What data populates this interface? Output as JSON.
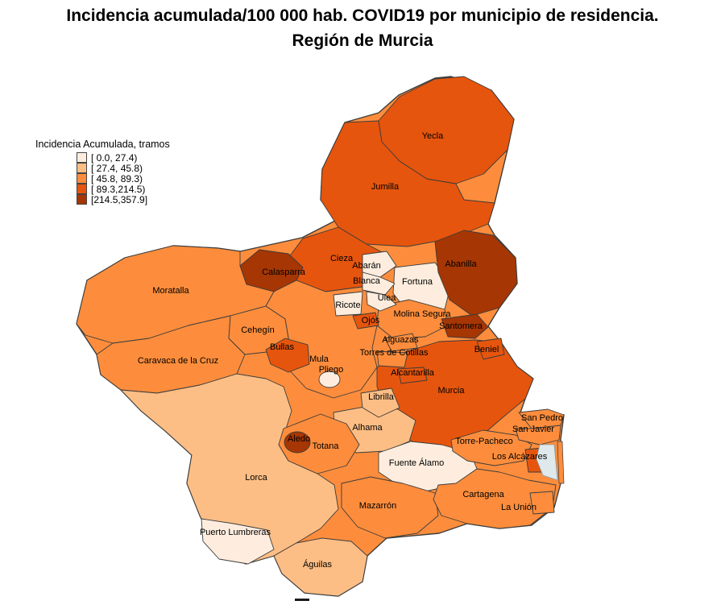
{
  "title": {
    "line1": "Incidencia acumulada/100 000 hab. COVID19 por municipio de residencia.",
    "line2": "Región de Murcia"
  },
  "legend": {
    "title": "Incidencia Acumulada, tramos",
    "bins": [
      {
        "label": "[ 0.0, 27.4)",
        "color": "#FEEDDE"
      },
      {
        "label": "[ 27.4, 45.8)",
        "color": "#FDBE85"
      },
      {
        "label": "[ 45.8, 89.3)",
        "color": "#FD8D3C"
      },
      {
        "label": "[ 89.3,214.5)",
        "color": "#E6550D"
      },
      {
        "label": "[214.5,357.9]",
        "color": "#A63603"
      }
    ]
  },
  "map": {
    "border_color": "#3c3c3c",
    "water_color": "#dfe9ec",
    "municipalities": [
      {
        "id": "moratalla",
        "name": "Moratalla",
        "bin": 2
      },
      {
        "id": "caravaca",
        "name": "Caravaca de la Cruz",
        "bin": 2
      },
      {
        "id": "lorca",
        "name": "Lorca",
        "bin": 1
      },
      {
        "id": "jumilla",
        "name": "Jumilla",
        "bin": 3
      },
      {
        "id": "yecla",
        "name": "Yecla",
        "bin": 3
      },
      {
        "id": "cieza",
        "name": "Cieza",
        "bin": 3
      },
      {
        "id": "calasparra",
        "name": "Calasparra",
        "bin": 4
      },
      {
        "id": "mula",
        "name": "Mula",
        "bin": 2
      },
      {
        "id": "cehegin",
        "name": "Cehegín",
        "bin": 2
      },
      {
        "id": "fortuna",
        "name": "Fortuna",
        "bin": 0
      },
      {
        "id": "abanilla",
        "name": "Abanilla",
        "bin": 4
      },
      {
        "id": "molina",
        "name": "Molina Segura",
        "bin": 2
      },
      {
        "id": "murcia",
        "name": "Murcia",
        "bin": 3
      },
      {
        "id": "alhama",
        "name": "Alhama",
        "bin": 1
      },
      {
        "id": "totana",
        "name": "Totana",
        "bin": 2
      },
      {
        "id": "fuentealamo",
        "name": "Fuente Álamo",
        "bin": 0
      },
      {
        "id": "mazarron",
        "name": "Mazarrón",
        "bin": 2
      },
      {
        "id": "cartagena",
        "name": "Cartagena",
        "bin": 2
      },
      {
        "id": "torrepacheco",
        "name": "Torre-Pacheco",
        "bin": 2
      },
      {
        "id": "aguilas",
        "name": "Águilas",
        "bin": 1
      },
      {
        "id": "puertolumbreras",
        "name": "Puerto Lumbreras",
        "bin": 0
      },
      {
        "id": "bullas",
        "name": "Bullas",
        "bin": 3
      },
      {
        "id": "abaran",
        "name": "Abarán",
        "bin": 0
      },
      {
        "id": "blanca",
        "name": "Blanca",
        "bin": 0
      },
      {
        "id": "ricote",
        "name": "Ricote",
        "bin": 0
      },
      {
        "id": "ulea",
        "name": "Ulea",
        "bin": 0
      },
      {
        "id": "ojos",
        "name": "Ojós",
        "bin": 3
      },
      {
        "id": "alguazas",
        "name": "Alguazas",
        "bin": 2
      },
      {
        "id": "torres",
        "name": "Torres de Cotillas",
        "bin": 2
      },
      {
        "id": "alcantarilla",
        "name": "Alcantarilla",
        "bin": 3
      },
      {
        "id": "librilla",
        "name": "Librilla",
        "bin": 1
      },
      {
        "id": "pliego",
        "name": "Pliego",
        "bin": 0
      },
      {
        "id": "aledo",
        "name": "Aledo",
        "bin": 4
      },
      {
        "id": "santomera",
        "name": "Santomera",
        "bin": 4
      },
      {
        "id": "beniel",
        "name": "Beniel",
        "bin": 3
      },
      {
        "id": "sanpedro",
        "name": "San Pedro",
        "bin": 2
      },
      {
        "id": "sanjavier",
        "name": "San Javier",
        "bin": 2
      },
      {
        "id": "losalcazares",
        "name": "Los Alcázares",
        "bin": 3
      },
      {
        "id": "launion",
        "name": "La Unión",
        "bin": 2
      }
    ]
  }
}
